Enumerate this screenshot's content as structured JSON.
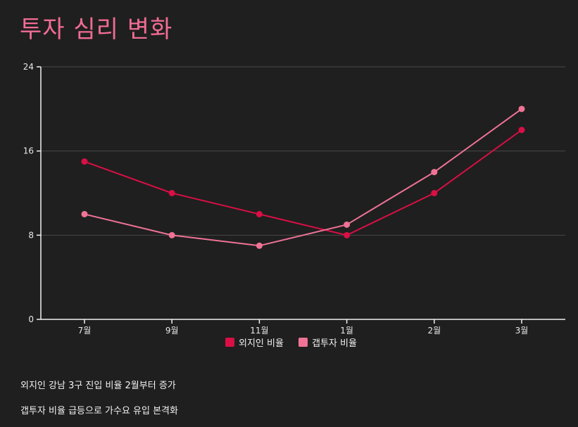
{
  "colors": {
    "title": "#f06c93",
    "series_1": "#d90f45",
    "series_2": "#f07396",
    "grid": "#484848",
    "axis": "#f0f0f0",
    "background": "#1f1f1f"
  },
  "chart_data": {
    "type": "line",
    "title": "투자 심리 변화",
    "xlabel": "",
    "ylabel": "",
    "categories": [
      "7월",
      "9월",
      "11월",
      "1월",
      "2월",
      "3월"
    ],
    "ylim": [
      0,
      24
    ],
    "yticks": [
      "0",
      "8",
      "16",
      "24"
    ],
    "grid": true,
    "legend_position": "bottom-center",
    "series": [
      {
        "name": "외지인 비율",
        "values": [
          15,
          12,
          10,
          8,
          12,
          18
        ]
      },
      {
        "name": "갭투자 비율",
        "values": [
          10,
          8,
          7,
          9,
          14,
          20
        ]
      }
    ]
  },
  "notes": [
    "외지인 강남 3구 진입 비율 2월부터 증가",
    "갭투자 비율 급등으로 가수요 유입 본격화"
  ]
}
